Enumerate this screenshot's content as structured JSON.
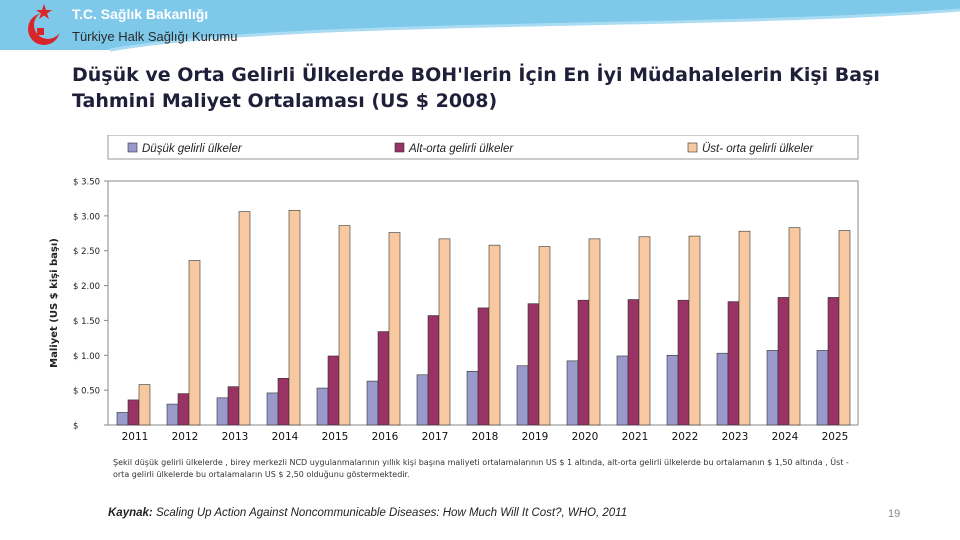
{
  "header": {
    "ministry": "T.C. Sağlık Bakanlığı",
    "agency": "Türkiye Halk Sağlığı Kurumu",
    "logo_icon": "ministry-crescent-star-icon"
  },
  "slide": {
    "title": "Düşük ve Orta Gelirli Ülkelerde BOH'lerin İçin En İyi Müdahalelerin Kişi Başı Tahmini Maliyet Ortalaması (US $ 2008)",
    "caption": "Şekil düşük gelirli ülkelerde , birey merkezli NCD uygulanmalarının yıllık kişi başına maliyeti ortalamalarının US $ 1 altında, alt-orta gelirli ülkelerde bu ortalamanın $ 1,50 altında , Üst - orta gelirli ülkelerde bu ortalamaların US $ 2,50 olduğunu göstermektedir.",
    "source_label": "Kaynak:",
    "source_text": "Scaling Up Action Against Noncommunicable Diseases: How Much Will It Cost?, WHO, 2011",
    "page_number": "19"
  },
  "colors": {
    "banner": "#7ec8ea",
    "series": [
      "#9999cc",
      "#993366",
      "#f8c9a0"
    ],
    "axis": "#888888"
  },
  "chart_data": {
    "type": "bar",
    "title": "",
    "xlabel": "",
    "ylabel": "Maliyet (US $ kişi başı)",
    "ylim": [
      0,
      3.5
    ],
    "grid": false,
    "legend_position": "top",
    "y_tick_values": [
      0,
      0.5,
      1,
      1.5,
      2,
      2.5,
      3,
      3.5
    ],
    "y_tick_labels": [
      "$",
      "$ 0.50",
      "$ 1.00",
      "$ 1.50",
      "$ 2.00",
      "$ 2.50",
      "$ 3.00",
      "$ 3.50"
    ],
    "categories": [
      "2011",
      "2012",
      "2013",
      "2014",
      "2015",
      "2016",
      "2017",
      "2018",
      "2019",
      "2020",
      "2021",
      "2022",
      "2023",
      "2024",
      "2025"
    ],
    "series": [
      {
        "name": "Düşük gelirli ülkeler",
        "values": [
          0.18,
          0.3,
          0.39,
          0.46,
          0.53,
          0.63,
          0.72,
          0.77,
          0.85,
          0.92,
          0.99,
          1.0,
          1.03,
          1.07,
          1.07
        ]
      },
      {
        "name": "Alt-orta gelirli ülkeler",
        "values": [
          0.36,
          0.45,
          0.55,
          0.67,
          0.99,
          1.34,
          1.57,
          1.68,
          1.74,
          1.79,
          1.8,
          1.79,
          1.77,
          1.83,
          1.83
        ]
      },
      {
        "name": "Üst- orta gelirli ülkeler",
        "values": [
          0.58,
          2.36,
          3.06,
          3.08,
          2.86,
          2.76,
          2.67,
          2.58,
          2.56,
          2.67,
          2.7,
          2.71,
          2.78,
          2.83,
          2.79
        ]
      }
    ]
  }
}
